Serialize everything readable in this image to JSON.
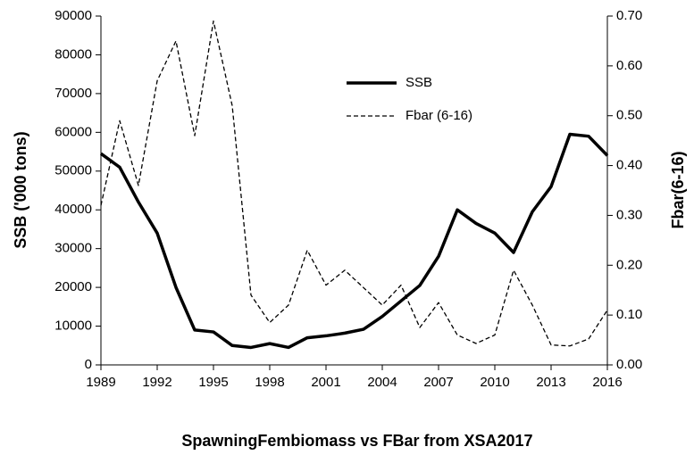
{
  "chart_data": {
    "type": "line",
    "title": "SpawningFembiomass vs FBar from XSA2017",
    "y_label": "SSB ('000 tons)",
    "y2_label": "Fbar(6-16)",
    "x": [
      1989,
      1990,
      1991,
      1992,
      1993,
      1994,
      1995,
      1996,
      1997,
      1998,
      1999,
      2000,
      2001,
      2002,
      2003,
      2004,
      2005,
      2006,
      2007,
      2008,
      2009,
      2010,
      2011,
      2012,
      2013,
      2014,
      2015,
      2016
    ],
    "series": [
      {
        "name": "SSB",
        "color": "#000000",
        "line_style": "solid",
        "values": [
          54500,
          51000,
          42000,
          34000,
          20000,
          9000,
          8500,
          5000,
          4500,
          5500,
          4500,
          7000,
          7500,
          8200,
          9200,
          12500,
          16500,
          20500,
          28000,
          40000,
          36500,
          34000,
          29000,
          39500,
          46000,
          59500,
          59000,
          54000
        ]
      },
      {
        "name": "Fbar (6-16)",
        "color": "#000000",
        "line_style": "dashed",
        "axis": "y2",
        "values": [
          0.32,
          0.49,
          0.36,
          0.57,
          0.65,
          0.46,
          0.69,
          0.52,
          0.14,
          0.085,
          0.12,
          0.23,
          0.16,
          0.19,
          0.155,
          0.12,
          0.16,
          0.075,
          0.125,
          0.06,
          0.043,
          0.06,
          0.19,
          0.12,
          0.04,
          0.038,
          0.052,
          0.11
        ]
      }
    ],
    "xlim": [
      1989,
      2016
    ],
    "xticks": [
      1989,
      1992,
      1995,
      1998,
      2001,
      2004,
      2007,
      2010,
      2013,
      2016
    ],
    "ylim": [
      0,
      90000
    ],
    "yticks": [
      0,
      10000,
      20000,
      30000,
      40000,
      50000,
      60000,
      70000,
      80000,
      90000
    ],
    "y2lim": [
      0,
      0.7
    ],
    "y2ticks": [
      {
        "value": 0,
        "label": "0.00"
      },
      {
        "value": 0.1,
        "label": "0.10"
      },
      {
        "value": 0.2,
        "label": "0.20"
      },
      {
        "value": 0.3,
        "label": "0.30"
      },
      {
        "value": 0.4,
        "label": "0.40"
      },
      {
        "value": 0.5,
        "label": "0.50"
      },
      {
        "value": 0.6,
        "label": "0.60"
      },
      {
        "value": 0.7,
        "label": "0.70"
      }
    ],
    "grid": false,
    "legend": "upper-center"
  }
}
